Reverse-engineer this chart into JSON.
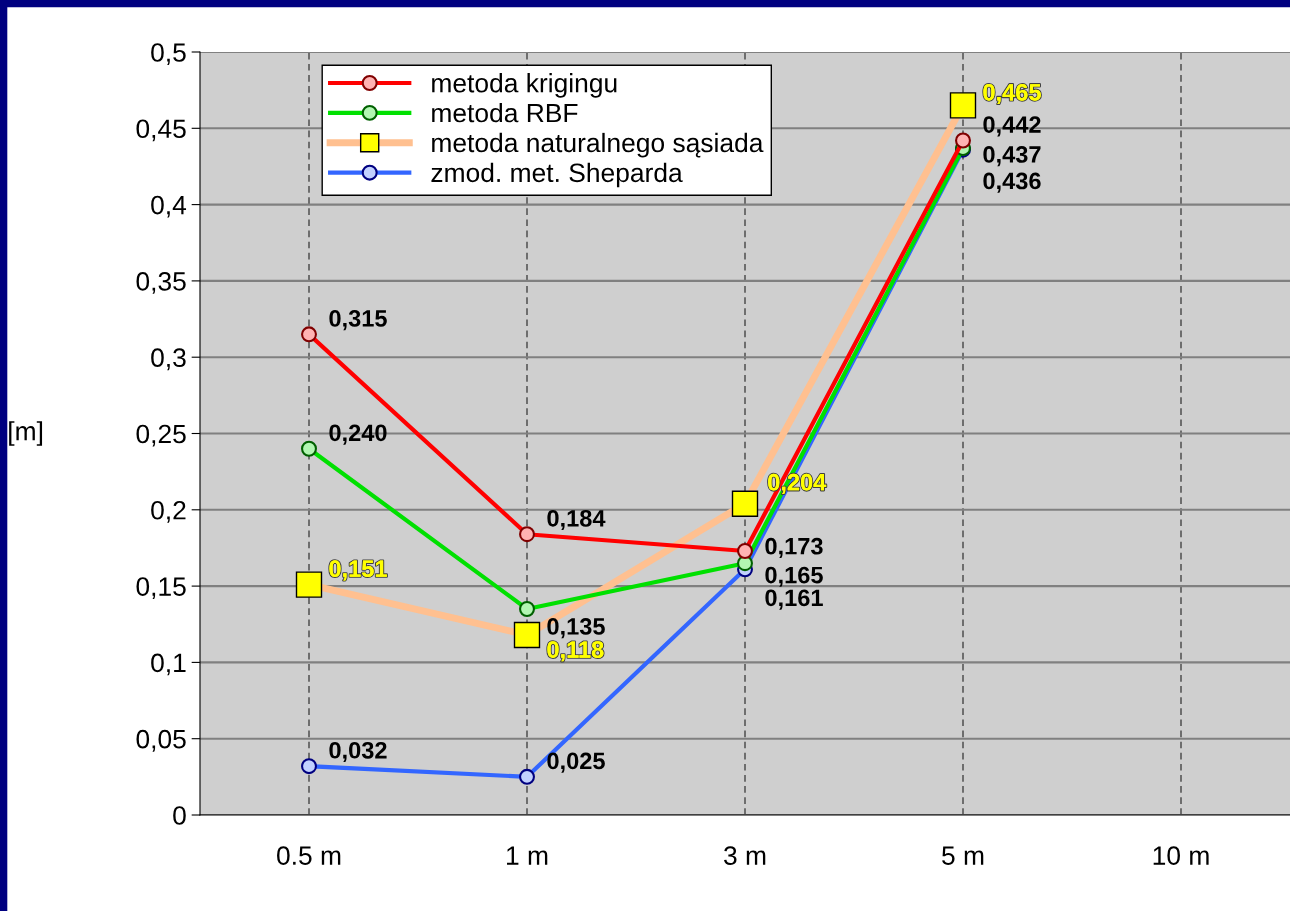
{
  "chart_data": {
    "type": "line",
    "ylabel": "[m]",
    "categories": [
      "0.5 m",
      "1 m",
      "3 m",
      "5 m",
      "10 m"
    ],
    "ylim": [
      0,
      0.5
    ],
    "yticks": [
      0,
      {
        "value": 0.05,
        "label": "0,05"
      },
      {
        "value": 0.1,
        "label": "0,1"
      },
      {
        "value": 0.15,
        "label": "0,15"
      },
      {
        "value": 0.2,
        "label": "0,2"
      },
      {
        "value": 0.25,
        "label": "0,25"
      },
      {
        "value": 0.3,
        "label": "0,3"
      },
      {
        "value": 0.35,
        "label": "0,35"
      },
      {
        "value": 0.4,
        "label": "0,4"
      },
      {
        "value": 0.45,
        "label": "0,45"
      },
      {
        "value": 0.5,
        "label": "0,5"
      }
    ],
    "grid": true,
    "legend": "top left",
    "marker": "circle",
    "series": [
      {
        "name": "metoda krigingu",
        "color": "#ff0000",
        "values": [
          0.315,
          0.184,
          0.173,
          0.442,
          null
        ],
        "value_labels": [
          "0,315",
          "0,184",
          "0,173",
          "0,442",
          null
        ]
      },
      {
        "name": "metoda RBF",
        "color": "#00e000",
        "values": [
          0.24,
          0.135,
          0.165,
          0.437,
          null
        ],
        "value_labels": [
          "0,240",
          "0,135",
          "0,165",
          "0,437",
          null
        ]
      },
      {
        "name": "metoda naturalnego sąsiada",
        "color": "#ffc090",
        "marker": "square",
        "values": [
          0.151,
          0.118,
          0.204,
          0.465,
          null
        ],
        "value_labels": [
          "0,151",
          "0,118",
          "0,204",
          "0,465",
          null
        ]
      },
      {
        "name": "zmod. met. Sheparda",
        "color": "#3366ff",
        "values": [
          0.032,
          0.025,
          0.161,
          0.436,
          null
        ],
        "value_labels": [
          "0,032",
          "0,025",
          "0,161",
          "0,436",
          null
        ]
      }
    ]
  }
}
